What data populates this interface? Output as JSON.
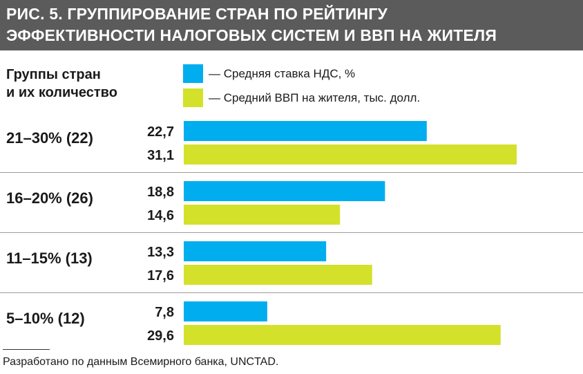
{
  "title": {
    "line1": "РИС. 5. ГРУППИРОВАНИЕ СТРАН ПО РЕЙТИНГУ",
    "line2": "ЭФФЕКТИВНОСТИ НАЛОГОВЫХ СИСТЕМ И ВВП НА ЖИТЕЛЯ"
  },
  "group_header": {
    "line1": "Группы стран",
    "line2": "и их количество"
  },
  "colors": {
    "vat": "#00aeef",
    "gdp": "#d4e12b",
    "header_bg": "#5b5b5b",
    "divider": "#9a9a9a"
  },
  "chart_data": {
    "type": "bar",
    "orientation": "horizontal",
    "categories": [
      "21–30% (22)",
      "16–20% (26)",
      "11–15% (13)",
      "5–10% (12)"
    ],
    "series": [
      {
        "name": "— Средняя ставка НДС, %",
        "values": [
          22.7,
          18.8,
          13.3,
          7.8
        ],
        "labels": [
          "22,7",
          "18,8",
          "13,3",
          "7,8"
        ]
      },
      {
        "name": "— Средний ВВП на жителя, тыс. долл.",
        "values": [
          31.1,
          14.6,
          17.6,
          29.6
        ],
        "labels": [
          "31,1",
          "14,6",
          "17,6",
          "29,6"
        ]
      }
    ],
    "xlim": [
      0,
      31.1
    ],
    "grid": false,
    "legend": "top"
  },
  "source": "Разработано по данным Всемирного банка, UNCTAD."
}
